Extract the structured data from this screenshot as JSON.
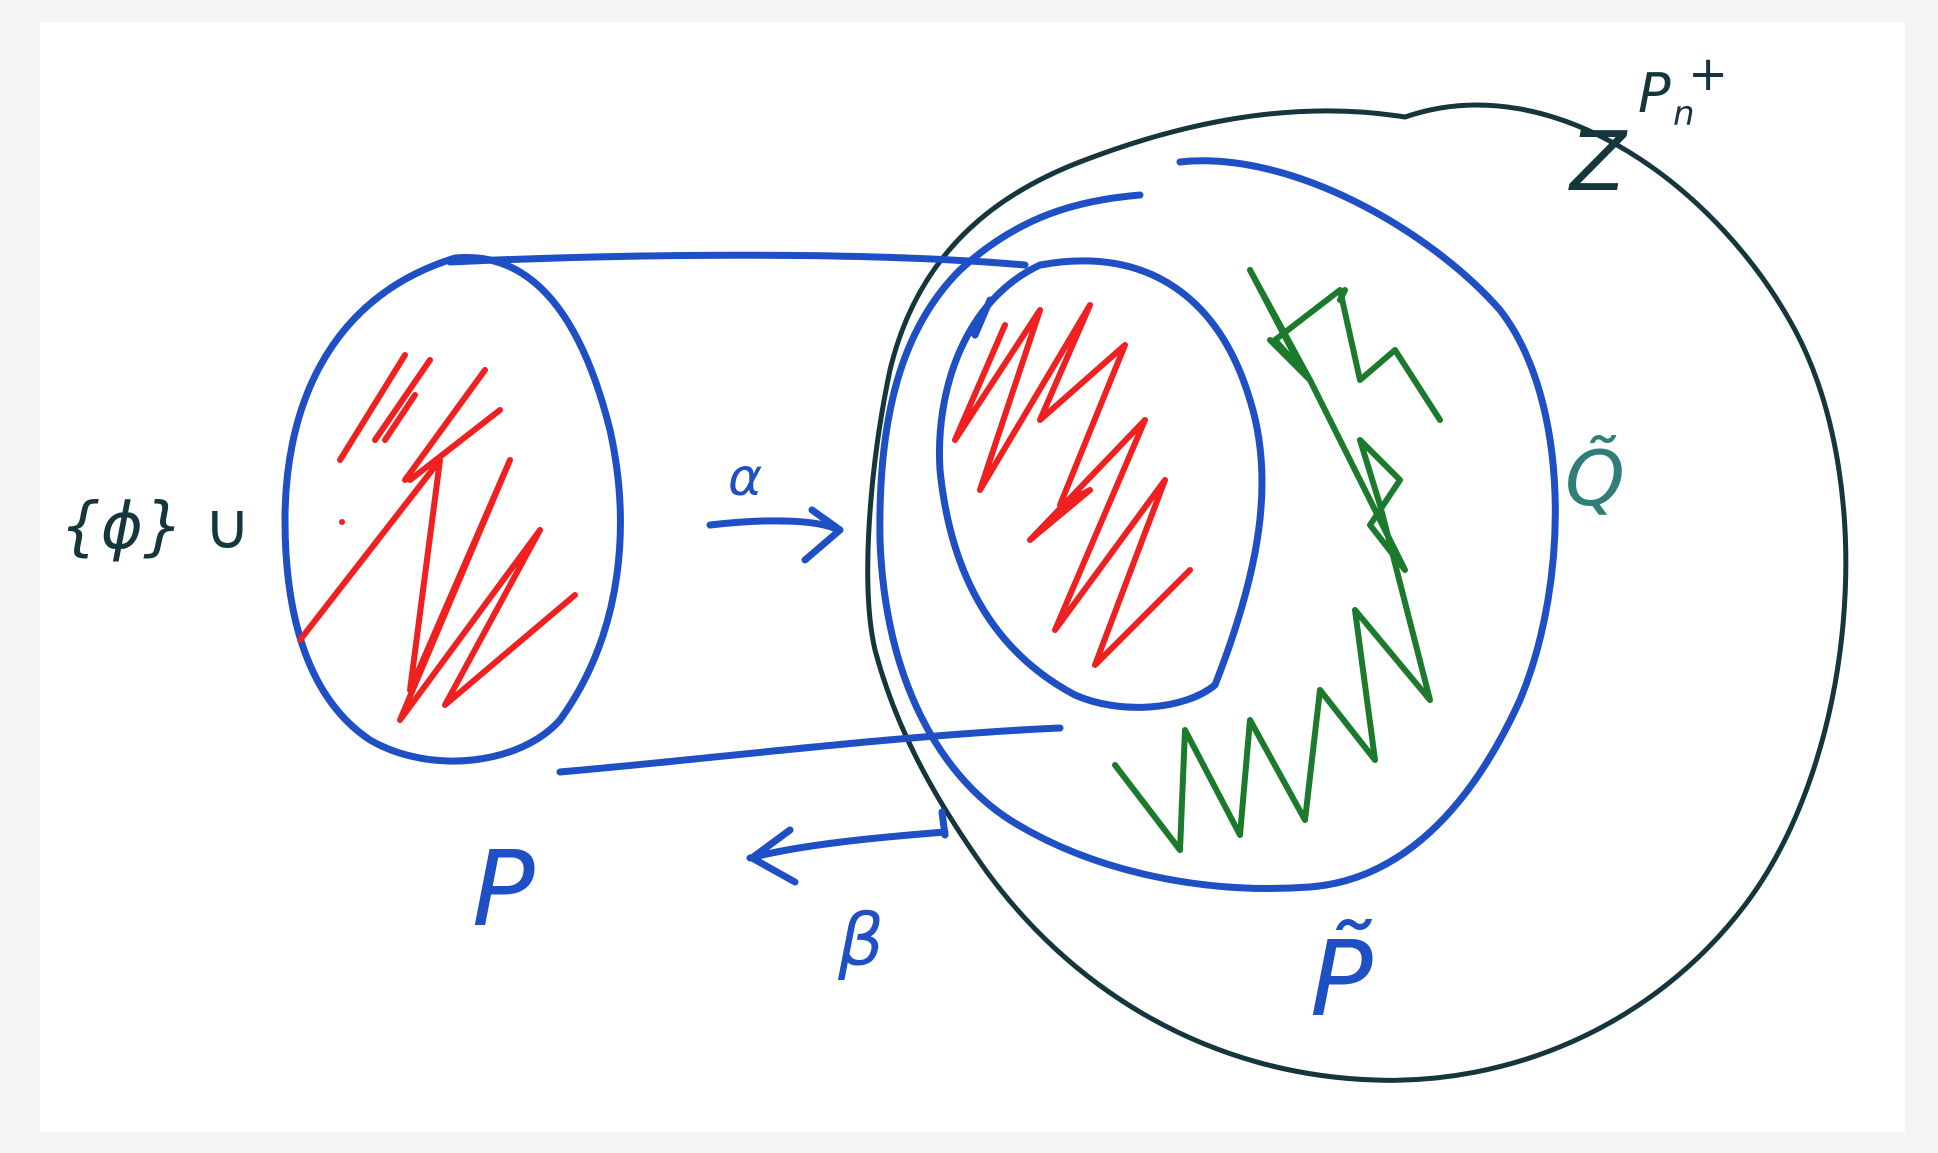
{
  "labels": {
    "set_label": "{ϕ} ∪",
    "map_forward": "α",
    "map_backward": "β",
    "space_p": "P",
    "space_p_tilde": "P̃",
    "space_q_tilde": "Q̃",
    "space_z": "Z",
    "space_z_super": "P",
    "space_z_sub": "n",
    "space_z_plus": "+"
  },
  "colors": {
    "blue": "#1f4fc4",
    "dark": "#14363c",
    "red": "#f02020",
    "green": "#1b7a2b",
    "teal": "#2f7f78"
  }
}
